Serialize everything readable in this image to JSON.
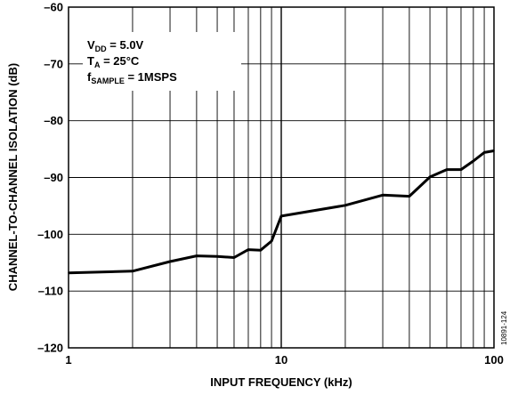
{
  "chart_data": {
    "type": "line",
    "xlabel": "INPUT FREQUENCY (kHz)",
    "ylabel": "CHANNEL-TO-CHANNEL ISOLATION (dB)",
    "x_scale": "log",
    "xlim": [
      1,
      100
    ],
    "ylim": [
      -120,
      -60
    ],
    "x_ticks": [
      "1",
      "10",
      "100"
    ],
    "y_ticks": [
      "–60",
      "–70",
      "–80",
      "–90",
      "–100",
      "–110",
      "–120"
    ],
    "grid": true,
    "series": [
      {
        "x": [
          1,
          2,
          3,
          4,
          5,
          6,
          7,
          8,
          9,
          10,
          20,
          30,
          40,
          50,
          60,
          70,
          80,
          90,
          100
        ],
        "values": [
          -106.8,
          -106.5,
          -104.8,
          -103.8,
          -103.9,
          -104.1,
          -102.7,
          -102.8,
          -101.2,
          -96.8,
          -94.9,
          -93.1,
          -93.3,
          -89.9,
          -88.6,
          -88.6,
          -87.1,
          -85.6,
          -85.3
        ]
      }
    ],
    "annotations": {
      "vdd": {
        "main": "V",
        "sub": "DD",
        "rest": " = 5.0V"
      },
      "ta": {
        "main": "T",
        "sub": "A",
        "rest": " = 25°C"
      },
      "fsample": {
        "main": "f",
        "sub": "SAMPLE",
        "rest": " = 1MSPS"
      }
    },
    "figure_id": "10891-124"
  }
}
